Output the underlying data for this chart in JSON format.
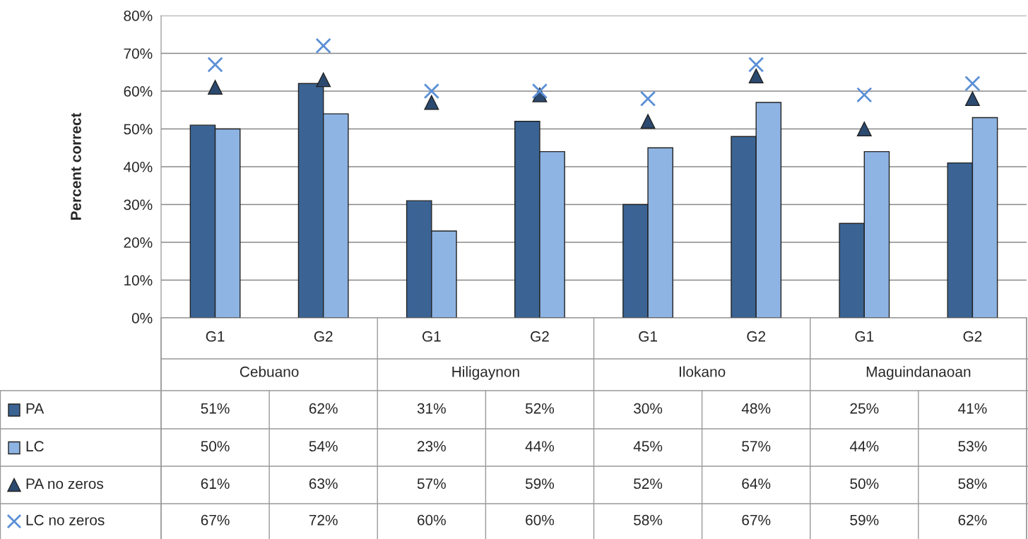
{
  "chart_data": {
    "type": "bar",
    "ylabel": "Percent correct",
    "categories": [
      "G1",
      "G2",
      "G1",
      "G2",
      "G1",
      "G2",
      "G1",
      "G2"
    ],
    "annotations": [
      "Cebuano",
      "Hiligaynon",
      "Ilokano",
      "Maguindanaoan"
    ],
    "series": [
      {
        "name": "PA",
        "color": "#3b6494",
        "values": [
          51,
          62,
          31,
          52,
          30,
          48,
          25,
          41
        ],
        "value_labels": [
          "51%",
          "62%",
          "31%",
          "52%",
          "30%",
          "48%",
          "25%",
          "41%"
        ]
      },
      {
        "name": "LC",
        "color": "#8eb4e3",
        "values": [
          50,
          54,
          23,
          44,
          45,
          57,
          44,
          53
        ],
        "value_labels": [
          "50%",
          "54%",
          "23%",
          "44%",
          "45%",
          "57%",
          "44%",
          "53%"
        ]
      },
      {
        "name": "PA no zeros",
        "type": "scatter",
        "marker": "triangle",
        "color": "#2c4a70",
        "values": [
          61,
          63,
          57,
          59,
          52,
          64,
          50,
          58
        ],
        "value_labels": [
          "61%",
          "63%",
          "57%",
          "59%",
          "52%",
          "64%",
          "50%",
          "58%"
        ]
      },
      {
        "name": "LC no zeros",
        "type": "scatter",
        "marker": "cross",
        "color": "#5b8fd6",
        "values": [
          67,
          72,
          60,
          60,
          58,
          67,
          59,
          62
        ],
        "value_labels": [
          "67%",
          "72%",
          "60%",
          "60%",
          "58%",
          "67%",
          "59%",
          "62%"
        ]
      }
    ],
    "ylim": [
      0,
      80
    ],
    "yticks": [
      {
        "value": 0,
        "label": "0%"
      },
      {
        "value": 10,
        "label": "10%"
      },
      {
        "value": 20,
        "label": "20%"
      },
      {
        "value": 30,
        "label": "30%"
      },
      {
        "value": 40,
        "label": "40%"
      },
      {
        "value": 50,
        "label": "50%"
      },
      {
        "value": 60,
        "label": "60%"
      },
      {
        "value": 70,
        "label": "70%"
      },
      {
        "value": 80,
        "label": "80%"
      }
    ],
    "grid": "y",
    "legend": "bottom"
  }
}
